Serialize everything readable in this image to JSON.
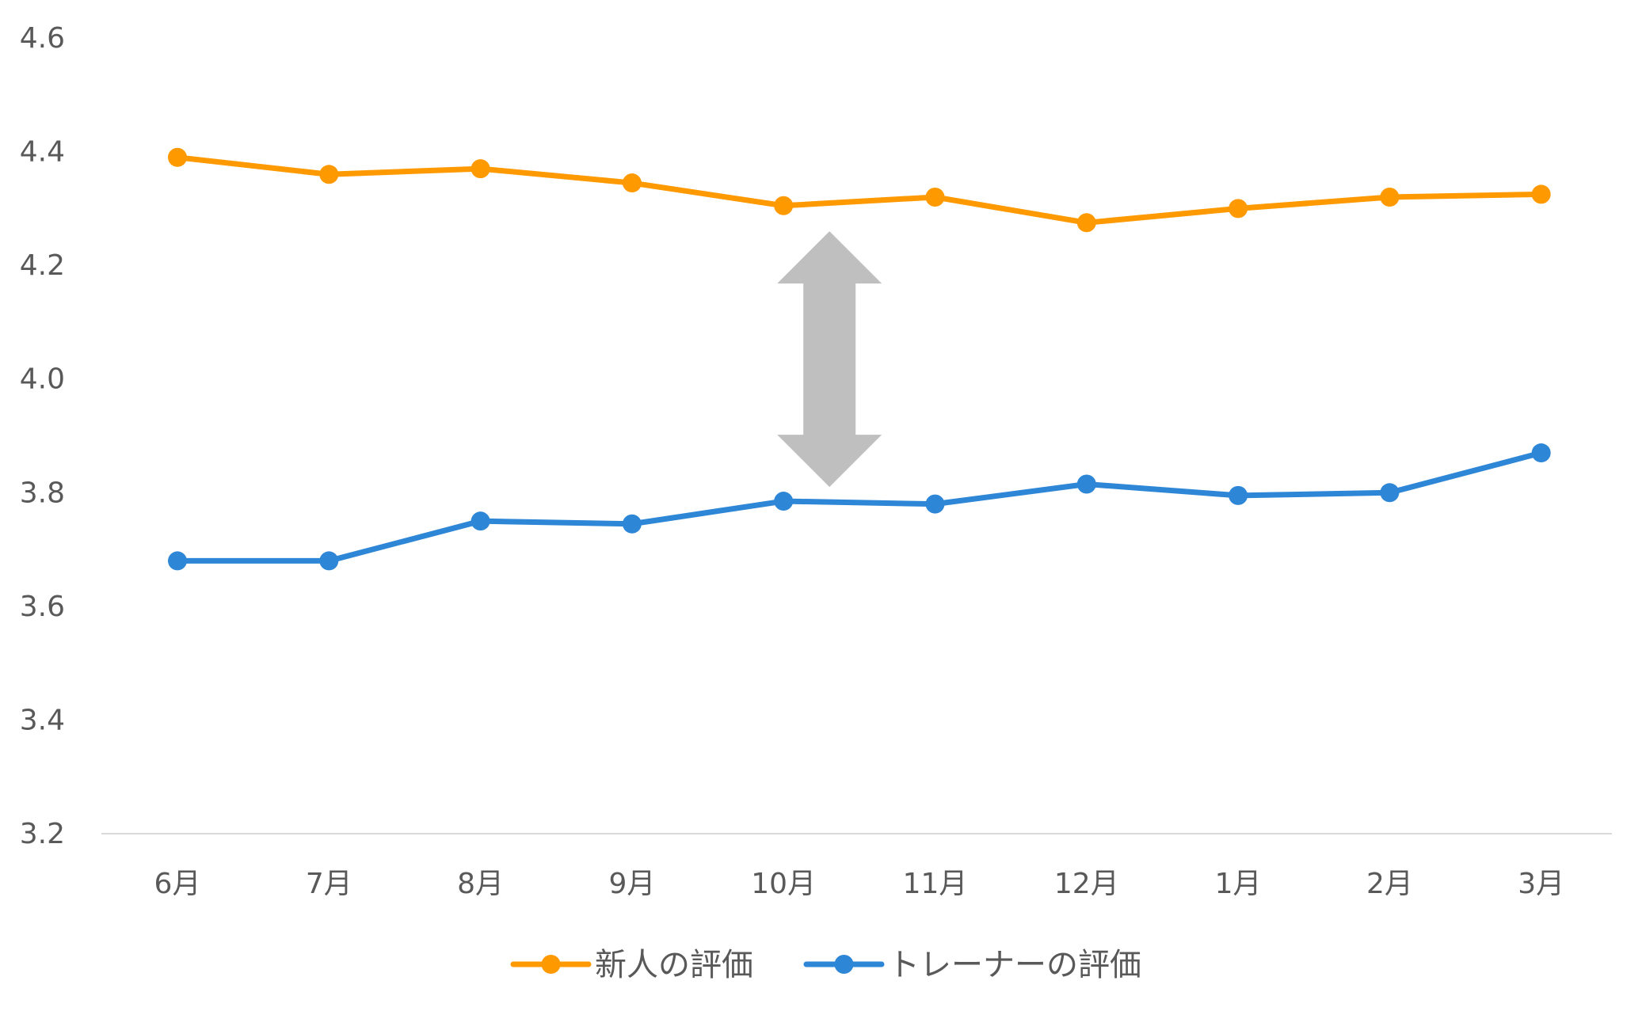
{
  "chart_data": {
    "type": "line",
    "categories": [
      "6月",
      "7月",
      "8月",
      "9月",
      "10月",
      "11月",
      "12月",
      "1月",
      "2月",
      "3月"
    ],
    "ylim": [
      3.2,
      4.6
    ],
    "yticks": [
      "3.2",
      "3.4",
      "3.6",
      "3.8",
      "4.0",
      "4.2",
      "4.4",
      "4.6"
    ],
    "grid": false,
    "legend_position": "bottom",
    "series": [
      {
        "name": "新人の評価",
        "color": "#FF9900",
        "values": [
          4.39,
          4.36,
          4.37,
          4.345,
          4.305,
          4.32,
          4.275,
          4.3,
          4.32,
          4.325
        ]
      },
      {
        "name": "トレーナーの評価",
        "color": "#2E86D6",
        "values": [
          3.68,
          3.68,
          3.75,
          3.745,
          3.785,
          3.78,
          3.815,
          3.795,
          3.8,
          3.87
        ]
      }
    ],
    "annotation": {
      "shape": "double-headed-arrow",
      "color": "#BFBFBF",
      "category_index": 4,
      "y_top": 4.26,
      "y_bottom": 3.81
    }
  }
}
